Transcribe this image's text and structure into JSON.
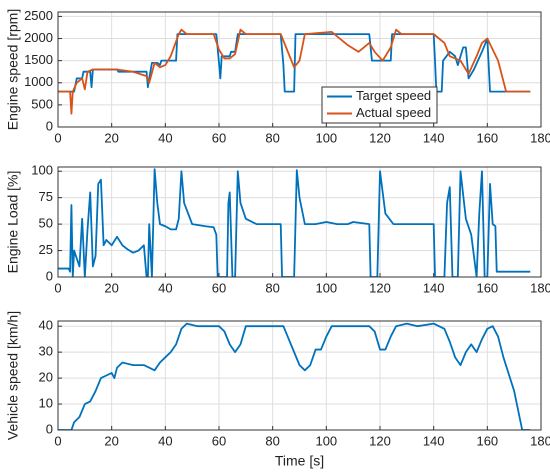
{
  "chart_data": [
    {
      "type": "line",
      "ylabel": "Engine speed [rpm]",
      "xlim": [
        0,
        180
      ],
      "xticks": [
        0,
        20,
        40,
        60,
        80,
        100,
        120,
        140,
        160,
        180
      ],
      "ylim": [
        0,
        2600
      ],
      "yticks": [
        0,
        500,
        1000,
        1500,
        2000,
        2500
      ],
      "grid": true,
      "series": [
        {
          "name": "Target speed",
          "color": "#0072BD",
          "x": [
            0,
            5,
            6,
            7,
            9,
            9.5,
            12,
            12.5,
            13,
            22,
            22.5,
            33,
            33.5,
            34,
            35,
            37,
            38,
            38.5,
            44,
            44.5,
            59,
            60,
            60.5,
            61,
            64,
            64.5,
            66,
            67,
            83,
            84,
            84.5,
            88,
            88.5,
            116,
            117,
            124,
            124.5,
            140,
            140.5,
            141,
            143,
            143.5,
            146,
            148,
            149,
            151,
            152,
            153,
            155,
            158,
            160,
            161,
            176
          ],
          "values": [
            800,
            800,
            800,
            1100,
            1100,
            1250,
            1250,
            900,
            1300,
            1300,
            1250,
            1250,
            900,
            1100,
            1450,
            1450,
            1400,
            1500,
            1500,
            2100,
            2100,
            1450,
            1100,
            1600,
            1600,
            1700,
            1700,
            2100,
            2100,
            1400,
            800,
            800,
            2100,
            2100,
            1500,
            1500,
            2100,
            2100,
            1500,
            800,
            800,
            1500,
            1700,
            1600,
            1400,
            1800,
            1800,
            1100,
            1300,
            1700,
            2000,
            800,
            800
          ]
        },
        {
          "name": "Actual speed",
          "color": "#D95319",
          "x": [
            0,
            4.5,
            5,
            5.5,
            7,
            9,
            10,
            11,
            13,
            22,
            28,
            33,
            34,
            36,
            38,
            40,
            42,
            45,
            46,
            48,
            58,
            60,
            62,
            64,
            66,
            68,
            70,
            83,
            85,
            88,
            90,
            92,
            102,
            104,
            108,
            112,
            116,
            118,
            121,
            124,
            126,
            128,
            140,
            144,
            146,
            150,
            153,
            156,
            158,
            160,
            164,
            167,
            176
          ],
          "values": [
            800,
            800,
            300,
            800,
            1000,
            1100,
            850,
            1250,
            1300,
            1300,
            1250,
            1150,
            1000,
            1450,
            1350,
            1400,
            1600,
            2100,
            2200,
            2100,
            2100,
            1750,
            1550,
            1550,
            1650,
            2200,
            2100,
            2100,
            1800,
            1350,
            1500,
            2100,
            2150,
            2050,
            1850,
            1700,
            1900,
            1700,
            1500,
            1800,
            2200,
            2100,
            2100,
            1900,
            1600,
            1500,
            1200,
            1600,
            1900,
            2000,
            1500,
            800,
            800
          ]
        }
      ]
    },
    {
      "type": "line",
      "ylabel": "Engine Load [%]",
      "xlim": [
        0,
        180
      ],
      "xticks": [
        0,
        20,
        40,
        60,
        80,
        100,
        120,
        140,
        160,
        180
      ],
      "ylim": [
        0,
        104
      ],
      "yticks": [
        0,
        25,
        50,
        75,
        100
      ],
      "grid": true,
      "series": [
        {
          "name": "Engine load",
          "color": "#0072BD",
          "x": [
            0,
            4,
            4.5,
            5,
            5.5,
            6,
            8,
            9,
            10,
            11,
            12,
            13,
            14,
            15,
            16,
            17,
            18,
            20,
            22,
            24,
            26,
            28,
            30,
            32,
            33,
            33.5,
            34,
            35,
            36,
            37,
            38,
            40,
            42,
            44,
            45,
            46,
            47,
            50,
            55,
            58,
            59,
            59.5,
            63,
            63.5,
            64,
            65,
            66,
            67,
            68,
            70,
            74,
            80,
            83,
            83.5,
            88,
            89,
            90,
            92,
            96,
            100,
            104,
            108,
            110,
            116,
            116.5,
            119,
            120,
            122,
            125,
            130,
            135,
            140,
            140.5,
            144,
            145,
            146,
            147,
            149,
            150,
            152,
            154,
            156,
            157,
            158,
            159,
            160,
            161,
            162,
            163,
            163.5,
            176
          ],
          "values": [
            8,
            8,
            5,
            68,
            0,
            25,
            10,
            55,
            0,
            45,
            80,
            10,
            20,
            88,
            92,
            30,
            35,
            30,
            38,
            30,
            26,
            23,
            25,
            30,
            0,
            0,
            50,
            0,
            102,
            70,
            50,
            48,
            45,
            45,
            55,
            100,
            70,
            50,
            48,
            47,
            40,
            0,
            0,
            70,
            80,
            0,
            0,
            100,
            70,
            55,
            50,
            50,
            50,
            0,
            0,
            101,
            75,
            50,
            50,
            52,
            50,
            50,
            52,
            50,
            0,
            0,
            100,
            60,
            50,
            50,
            50,
            50,
            0,
            0,
            70,
            85,
            0,
            0,
            100,
            55,
            40,
            0,
            60,
            100,
            0,
            0,
            88,
            50,
            48,
            5,
            5
          ]
        }
      ]
    },
    {
      "type": "line",
      "ylabel": "Vehicle speed [km/h]",
      "xlabel": "Time [s]",
      "xlim": [
        0,
        180
      ],
      "xticks": [
        0,
        20,
        40,
        60,
        80,
        100,
        120,
        140,
        160,
        180
      ],
      "ylim": [
        0,
        42
      ],
      "yticks": [
        0,
        10,
        20,
        30,
        40
      ],
      "grid": true,
      "series": [
        {
          "name": "Vehicle speed",
          "color": "#0072BD",
          "x": [
            0,
            5,
            6,
            8,
            10,
            12,
            14,
            16,
            18,
            20,
            21,
            22,
            24,
            28,
            32,
            34,
            36,
            38,
            40,
            42,
            44,
            46,
            48,
            52,
            60,
            62,
            64,
            66,
            68,
            70,
            74,
            84,
            86,
            88,
            90,
            92,
            94,
            96,
            98,
            100,
            102,
            108,
            116,
            118,
            120,
            122,
            124,
            126,
            130,
            134,
            140,
            144,
            146,
            148,
            150,
            152,
            154,
            156,
            158,
            160,
            162,
            164,
            166,
            170,
            172,
            173,
            176
          ],
          "values": [
            0,
            0,
            3,
            5,
            10,
            11,
            15,
            20,
            21,
            22,
            20,
            24,
            26,
            25,
            25,
            24,
            23,
            26,
            28,
            30,
            33,
            39,
            41,
            40,
            40,
            38,
            33,
            30,
            33,
            40,
            40,
            40,
            35,
            30,
            25,
            23,
            25,
            31,
            31,
            36,
            40,
            40,
            40,
            38,
            31,
            31,
            36,
            40,
            41,
            40,
            41,
            39,
            34,
            28,
            25,
            30,
            33,
            30,
            35,
            39,
            40,
            36,
            28,
            15,
            5,
            0,
            0
          ]
        }
      ]
    }
  ]
}
